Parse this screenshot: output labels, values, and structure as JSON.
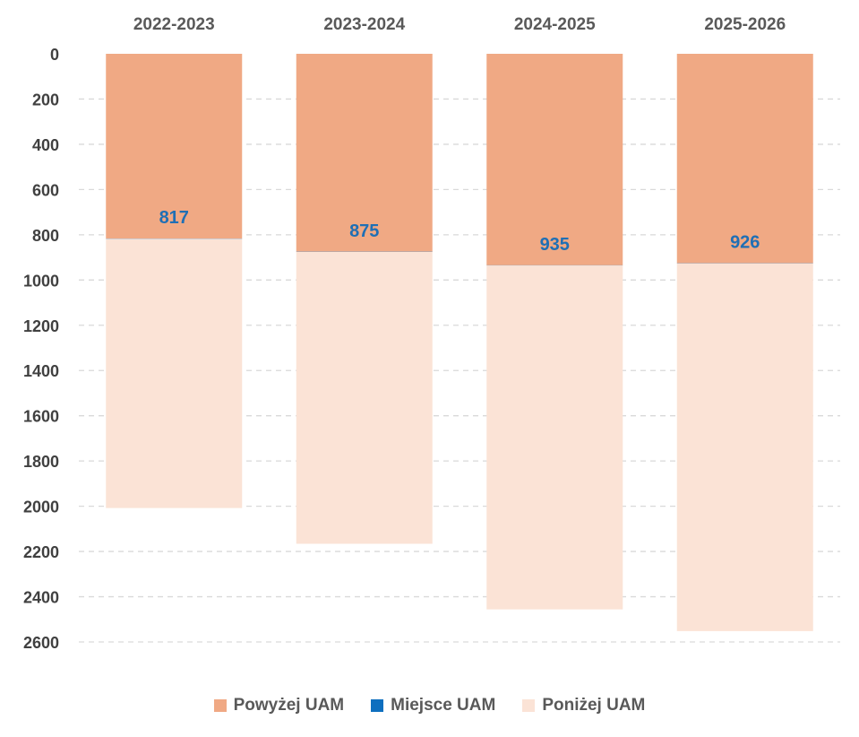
{
  "chart_data": {
    "type": "bar",
    "stacked": true,
    "y_axis_inverted": true,
    "x_axis_position": "top",
    "categories": [
      "2022-2023",
      "2023-2024",
      "2024-2025",
      "2025-2026"
    ],
    "series": [
      {
        "name": "Powyżej UAM",
        "values": [
          817,
          875,
          935,
          926
        ],
        "color": "#F0A984",
        "labels": [
          "817",
          "875",
          "935",
          "926"
        ]
      },
      {
        "name": "Miejsce UAM",
        "values": [
          1,
          1,
          1,
          1
        ],
        "color": "#0E6FBF"
      },
      {
        "name": "Poniżej UAM",
        "values": [
          1190,
          1290,
          1520,
          1625
        ],
        "color": "#FBE3D6"
      }
    ],
    "ylim": [
      0,
      2600
    ],
    "yticks": [
      0,
      200,
      400,
      600,
      800,
      1000,
      1200,
      1400,
      1600,
      1800,
      2000,
      2200,
      2400,
      2600
    ],
    "ytick_labels": [
      "0",
      "200",
      "400",
      "600",
      "800",
      "1000",
      "1200",
      "1400",
      "1600",
      "1800",
      "2000",
      "2200",
      "2400",
      "2600"
    ],
    "grid": "dashed horizontal",
    "legend_position": "bottom",
    "data_label_color": "#1F6FB5",
    "grid_color": "#D9D9D9"
  }
}
